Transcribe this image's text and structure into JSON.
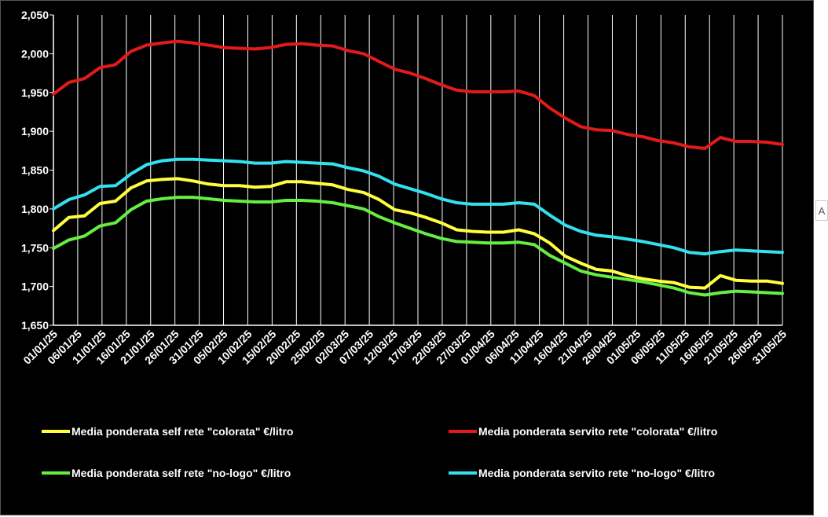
{
  "chart_data": {
    "type": "line",
    "title": "",
    "xlabel": "",
    "ylabel": "",
    "ylim": [
      1650,
      2050
    ],
    "ytick_labels": [
      "1,650",
      "1,700",
      "1,750",
      "1,800",
      "1,850",
      "1,900",
      "1,950",
      "2,000",
      "2,050"
    ],
    "x_tick_labels": [
      "01/01/25",
      "06/01/25",
      "11/01/25",
      "16/01/25",
      "21/01/25",
      "26/01/25",
      "31/01/25",
      "05/02/25",
      "10/02/25",
      "15/02/25",
      "20/02/25",
      "25/02/25",
      "02/03/25",
      "07/03/25",
      "12/03/25",
      "17/03/25",
      "22/03/25",
      "27/03/25",
      "01/04/25",
      "06/04/25",
      "11/04/25",
      "16/04/25",
      "21/04/25",
      "26/04/25",
      "01/05/25",
      "06/05/25",
      "11/05/25",
      "16/05/25",
      "21/05/25",
      "26/05/25",
      "31/05/25"
    ],
    "grid": "vertical",
    "legend_position": "bottom",
    "series": [
      {
        "name": "Media ponderata self rete \"colorata\" €/litro",
        "color": "#ffff40",
        "values": [
          1772,
          1789,
          1791,
          1807,
          1810,
          1827,
          1836,
          1838,
          1839,
          1836,
          1832,
          1830,
          1830,
          1828,
          1829,
          1835,
          1835,
          1833,
          1831,
          1825,
          1821,
          1812,
          1799,
          1795,
          1789,
          1782,
          1773,
          1771,
          1770,
          1770,
          1773,
          1768,
          1756,
          1739,
          1730,
          1722,
          1720,
          1714,
          1710,
          1707,
          1705,
          1699,
          1698,
          1714,
          1708,
          1707,
          1707,
          1704
        ]
      },
      {
        "name": "Media ponderata servito rete \"colorata\" €/litro",
        "color": "#e31a1a",
        "values": [
          1948,
          1963,
          1968,
          1982,
          1986,
          2003,
          2011,
          2014,
          2016,
          2014,
          2011,
          2008,
          2007,
          2006,
          2008,
          2012,
          2013,
          2011,
          2010,
          2004,
          2000,
          1990,
          1980,
          1975,
          1968,
          1960,
          1953,
          1951,
          1951,
          1951,
          1952,
          1946,
          1930,
          1917,
          1906,
          1902,
          1901,
          1896,
          1893,
          1888,
          1885,
          1880,
          1878,
          1892,
          1887,
          1887,
          1886,
          1883
        ]
      },
      {
        "name": "Media ponderata self rete \"no-logo\" €/litro",
        "color": "#66ee44",
        "values": [
          1749,
          1760,
          1765,
          1778,
          1782,
          1799,
          1810,
          1813,
          1815,
          1815,
          1813,
          1811,
          1810,
          1809,
          1809,
          1811,
          1811,
          1810,
          1808,
          1804,
          1800,
          1790,
          1782,
          1775,
          1768,
          1762,
          1758,
          1757,
          1756,
          1756,
          1757,
          1754,
          1740,
          1730,
          1720,
          1715,
          1712,
          1709,
          1706,
          1702,
          1698,
          1692,
          1689,
          1692,
          1694,
          1693,
          1692,
          1691
        ]
      },
      {
        "name": "Media ponderata servito rete \"no-logo\" €/litro",
        "color": "#33e0ee",
        "values": [
          1800,
          1812,
          1818,
          1829,
          1830,
          1845,
          1857,
          1862,
          1864,
          1864,
          1863,
          1862,
          1861,
          1859,
          1859,
          1861,
          1860,
          1859,
          1858,
          1853,
          1849,
          1842,
          1832,
          1826,
          1820,
          1813,
          1808,
          1806,
          1806,
          1806,
          1808,
          1806,
          1792,
          1779,
          1771,
          1766,
          1764,
          1761,
          1758,
          1754,
          1750,
          1744,
          1742,
          1745,
          1747,
          1746,
          1745,
          1744
        ]
      }
    ]
  }
}
